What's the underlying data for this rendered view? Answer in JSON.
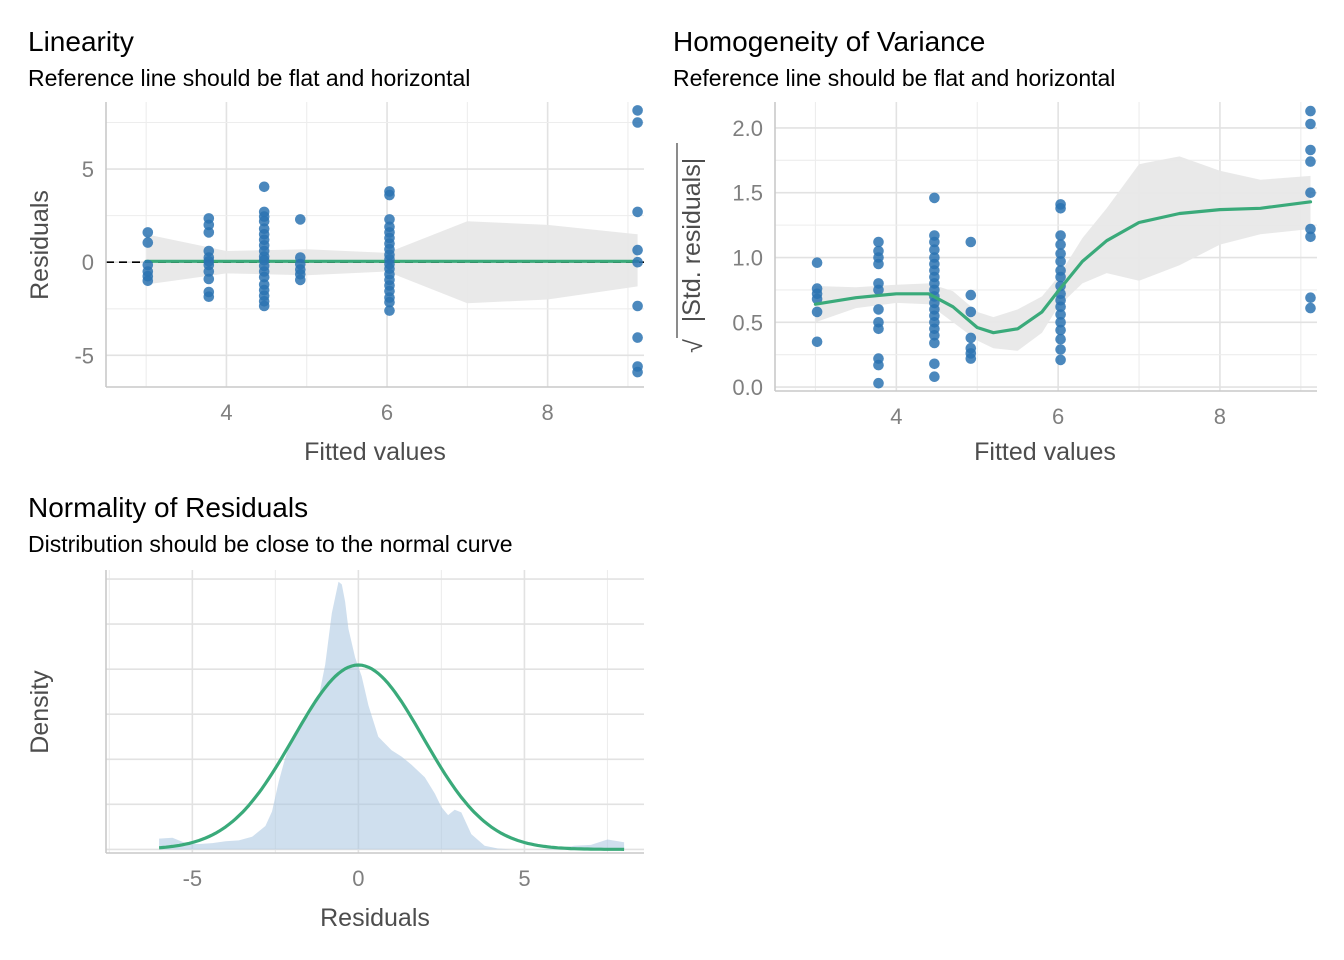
{
  "chart_data": [
    {
      "id": "linearity",
      "type": "scatter",
      "title": "Linearity",
      "subtitle": "Reference line should be flat and horizontal",
      "xlabel": "Fitted values",
      "ylabel": "Residuals",
      "xlim": [
        2.5,
        9.2
      ],
      "ylim": [
        -6.7,
        8.6
      ],
      "x_ticks": [
        4,
        6,
        8
      ],
      "x_tick_labels": [
        "4",
        "6",
        "8"
      ],
      "y_ticks": [
        -5,
        0,
        5
      ],
      "y_tick_labels": [
        "-5",
        "0",
        "5"
      ],
      "grid": true,
      "reference_line": {
        "y": 0,
        "style": "dashed",
        "color": "#000000"
      },
      "point_color": "#2b73b2",
      "points": [
        {
          "x": 3.02,
          "y": 1.6
        },
        {
          "x": 3.02,
          "y": 1.05
        },
        {
          "x": 3.02,
          "y": -0.15
        },
        {
          "x": 3.02,
          "y": -0.5
        },
        {
          "x": 3.02,
          "y": -0.75
        },
        {
          "x": 3.02,
          "y": -1.0
        },
        {
          "x": 3.78,
          "y": 2.35
        },
        {
          "x": 3.78,
          "y": 2.0
        },
        {
          "x": 3.78,
          "y": 1.6
        },
        {
          "x": 3.78,
          "y": 0.6
        },
        {
          "x": 3.78,
          "y": 0.25
        },
        {
          "x": 3.78,
          "y": 0.05
        },
        {
          "x": 3.78,
          "y": -0.15
        },
        {
          "x": 3.78,
          "y": -0.5
        },
        {
          "x": 3.78,
          "y": -0.9
        },
        {
          "x": 3.78,
          "y": -1.6
        },
        {
          "x": 3.78,
          "y": -1.85
        },
        {
          "x": 4.47,
          "y": 4.05
        },
        {
          "x": 4.47,
          "y": 2.7
        },
        {
          "x": 4.47,
          "y": 2.45
        },
        {
          "x": 4.47,
          "y": 2.2
        },
        {
          "x": 4.47,
          "y": 1.8
        },
        {
          "x": 4.47,
          "y": 1.5
        },
        {
          "x": 4.47,
          "y": 1.2
        },
        {
          "x": 4.47,
          "y": 0.9
        },
        {
          "x": 4.47,
          "y": 0.6
        },
        {
          "x": 4.47,
          "y": 0.3
        },
        {
          "x": 4.47,
          "y": 0.1
        },
        {
          "x": 4.47,
          "y": -0.2
        },
        {
          "x": 4.47,
          "y": -0.5
        },
        {
          "x": 4.47,
          "y": -0.8
        },
        {
          "x": 4.47,
          "y": -1.2
        },
        {
          "x": 4.47,
          "y": -1.5
        },
        {
          "x": 4.47,
          "y": -1.8
        },
        {
          "x": 4.47,
          "y": -2.1
        },
        {
          "x": 4.47,
          "y": -2.35
        },
        {
          "x": 4.92,
          "y": 2.3
        },
        {
          "x": 4.92,
          "y": 0.25
        },
        {
          "x": 4.92,
          "y": -0.1
        },
        {
          "x": 4.92,
          "y": -0.4
        },
        {
          "x": 4.92,
          "y": -0.65
        },
        {
          "x": 4.92,
          "y": -0.95
        },
        {
          "x": 6.03,
          "y": 3.8
        },
        {
          "x": 6.03,
          "y": 3.6
        },
        {
          "x": 6.03,
          "y": 2.3
        },
        {
          "x": 6.03,
          "y": 1.9
        },
        {
          "x": 6.03,
          "y": 1.6
        },
        {
          "x": 6.03,
          "y": 1.3
        },
        {
          "x": 6.03,
          "y": 1.0
        },
        {
          "x": 6.03,
          "y": 0.7
        },
        {
          "x": 6.03,
          "y": 0.4
        },
        {
          "x": 6.03,
          "y": 0.15
        },
        {
          "x": 6.03,
          "y": -0.1
        },
        {
          "x": 6.03,
          "y": -0.35
        },
        {
          "x": 6.03,
          "y": -0.65
        },
        {
          "x": 6.03,
          "y": -0.95
        },
        {
          "x": 6.03,
          "y": -1.25
        },
        {
          "x": 6.03,
          "y": -1.55
        },
        {
          "x": 6.03,
          "y": -1.9
        },
        {
          "x": 6.03,
          "y": -2.15
        },
        {
          "x": 6.03,
          "y": -2.6
        },
        {
          "x": 9.12,
          "y": 8.15
        },
        {
          "x": 9.12,
          "y": 7.5
        },
        {
          "x": 9.12,
          "y": 2.7
        },
        {
          "x": 9.12,
          "y": 0.65
        },
        {
          "x": 9.12,
          "y": 0.0
        },
        {
          "x": 9.12,
          "y": -2.35
        },
        {
          "x": 9.12,
          "y": -4.05
        },
        {
          "x": 9.12,
          "y": -5.6
        },
        {
          "x": 9.12,
          "y": -5.9
        }
      ],
      "smooth": {
        "color": "#3aaa7a",
        "x": [
          3.0,
          4.0,
          5.0,
          6.0,
          7.0,
          8.0,
          9.12
        ],
        "y": [
          0.05,
          0.05,
          0.05,
          0.05,
          0.05,
          0.05,
          0.05
        ],
        "ci_upper": [
          1.5,
          0.6,
          0.7,
          0.5,
          2.2,
          2.0,
          1.5
        ],
        "ci_lower": [
          -1.2,
          -0.6,
          -0.7,
          -0.5,
          -2.2,
          -2.0,
          -1.3
        ]
      }
    },
    {
      "id": "homogeneity",
      "type": "scatter",
      "title": "Homogeneity of Variance",
      "subtitle": "Reference line should be flat and horizontal",
      "xlabel": "Fitted values",
      "ylabel": "|Std. residuals|",
      "ylabel_root": "√",
      "xlim": [
        2.5,
        9.2
      ],
      "ylim": [
        -0.03,
        2.2
      ],
      "x_ticks": [
        4,
        6,
        8
      ],
      "x_tick_labels": [
        "4",
        "6",
        "8"
      ],
      "y_ticks": [
        0,
        0.5,
        1,
        1.5,
        2
      ],
      "y_tick_labels": [
        "0.0",
        "0.5",
        "1.0",
        "1.5",
        "2.0"
      ],
      "grid": true,
      "point_color": "#2b73b2",
      "points": [
        {
          "x": 3.02,
          "y": 0.96
        },
        {
          "x": 3.02,
          "y": 0.76
        },
        {
          "x": 3.02,
          "y": 0.72
        },
        {
          "x": 3.02,
          "y": 0.68
        },
        {
          "x": 3.02,
          "y": 0.58
        },
        {
          "x": 3.02,
          "y": 0.35
        },
        {
          "x": 3.78,
          "y": 1.12
        },
        {
          "x": 3.78,
          "y": 1.05
        },
        {
          "x": 3.78,
          "y": 1.0
        },
        {
          "x": 3.78,
          "y": 0.95
        },
        {
          "x": 3.78,
          "y": 0.8
        },
        {
          "x": 3.78,
          "y": 0.75
        },
        {
          "x": 3.78,
          "y": 0.6
        },
        {
          "x": 3.78,
          "y": 0.5
        },
        {
          "x": 3.78,
          "y": 0.45
        },
        {
          "x": 3.78,
          "y": 0.22
        },
        {
          "x": 3.78,
          "y": 0.17
        },
        {
          "x": 3.78,
          "y": 0.03
        },
        {
          "x": 4.47,
          "y": 1.46
        },
        {
          "x": 4.47,
          "y": 1.17
        },
        {
          "x": 4.47,
          "y": 1.12
        },
        {
          "x": 4.47,
          "y": 1.06
        },
        {
          "x": 4.47,
          "y": 1.0
        },
        {
          "x": 4.47,
          "y": 0.95
        },
        {
          "x": 4.47,
          "y": 0.9
        },
        {
          "x": 4.47,
          "y": 0.85
        },
        {
          "x": 4.47,
          "y": 0.8
        },
        {
          "x": 4.47,
          "y": 0.75
        },
        {
          "x": 4.47,
          "y": 0.7
        },
        {
          "x": 4.47,
          "y": 0.65
        },
        {
          "x": 4.47,
          "y": 0.6
        },
        {
          "x": 4.47,
          "y": 0.55
        },
        {
          "x": 4.47,
          "y": 0.5
        },
        {
          "x": 4.47,
          "y": 0.45
        },
        {
          "x": 4.47,
          "y": 0.4
        },
        {
          "x": 4.47,
          "y": 0.34
        },
        {
          "x": 4.47,
          "y": 0.18
        },
        {
          "x": 4.47,
          "y": 0.08
        },
        {
          "x": 4.92,
          "y": 1.12
        },
        {
          "x": 4.92,
          "y": 0.71
        },
        {
          "x": 4.92,
          "y": 0.58
        },
        {
          "x": 4.92,
          "y": 0.38
        },
        {
          "x": 4.92,
          "y": 0.3
        },
        {
          "x": 4.92,
          "y": 0.26
        },
        {
          "x": 4.92,
          "y": 0.22
        },
        {
          "x": 6.03,
          "y": 1.41
        },
        {
          "x": 6.03,
          "y": 1.38
        },
        {
          "x": 6.03,
          "y": 1.17
        },
        {
          "x": 6.03,
          "y": 1.1
        },
        {
          "x": 6.03,
          "y": 1.03
        },
        {
          "x": 6.03,
          "y": 0.97
        },
        {
          "x": 6.03,
          "y": 0.9
        },
        {
          "x": 6.03,
          "y": 0.85
        },
        {
          "x": 6.03,
          "y": 0.78
        },
        {
          "x": 6.03,
          "y": 0.72
        },
        {
          "x": 6.03,
          "y": 0.67
        },
        {
          "x": 6.03,
          "y": 0.62
        },
        {
          "x": 6.03,
          "y": 0.56
        },
        {
          "x": 6.03,
          "y": 0.5
        },
        {
          "x": 6.03,
          "y": 0.44
        },
        {
          "x": 6.03,
          "y": 0.37
        },
        {
          "x": 6.03,
          "y": 0.29
        },
        {
          "x": 6.03,
          "y": 0.21
        },
        {
          "x": 9.12,
          "y": 2.13
        },
        {
          "x": 9.12,
          "y": 2.03
        },
        {
          "x": 9.12,
          "y": 1.83
        },
        {
          "x": 9.12,
          "y": 1.74
        },
        {
          "x": 9.12,
          "y": 1.5
        },
        {
          "x": 9.12,
          "y": 1.22
        },
        {
          "x": 9.12,
          "y": 1.16
        },
        {
          "x": 9.12,
          "y": 0.69
        },
        {
          "x": 9.12,
          "y": 0.61
        }
      ],
      "smooth": {
        "color": "#3aaa7a",
        "x": [
          3.0,
          3.5,
          4.0,
          4.4,
          4.7,
          5.0,
          5.2,
          5.5,
          5.8,
          6.0,
          6.3,
          6.6,
          7.0,
          7.5,
          8.0,
          8.5,
          9.12
        ],
        "y": [
          0.64,
          0.69,
          0.72,
          0.72,
          0.62,
          0.46,
          0.42,
          0.45,
          0.58,
          0.74,
          0.97,
          1.13,
          1.27,
          1.34,
          1.37,
          1.38,
          1.43
        ],
        "ci_upper": [
          0.78,
          0.77,
          0.79,
          0.8,
          0.74,
          0.58,
          0.54,
          0.6,
          0.7,
          0.85,
          1.15,
          1.38,
          1.72,
          1.78,
          1.67,
          1.6,
          1.63
        ],
        "ci_lower": [
          0.5,
          0.61,
          0.65,
          0.64,
          0.5,
          0.36,
          0.3,
          0.28,
          0.42,
          0.62,
          0.8,
          0.88,
          0.82,
          0.94,
          1.1,
          1.18,
          1.22
        ]
      }
    },
    {
      "id": "normality",
      "type": "area",
      "title": "Normality of Residuals",
      "subtitle": "Distribution should be close to the normal curve",
      "xlabel": "Residuals",
      "ylabel": "Density",
      "xlim": [
        -7.6,
        8.6
      ],
      "ylim": [
        -0.004,
        0.31
      ],
      "x_ticks": [
        -5,
        0,
        5
      ],
      "x_tick_labels": [
        "-5",
        "0",
        "5"
      ],
      "y_gridlines": [
        0,
        0.05,
        0.1,
        0.15,
        0.2,
        0.25,
        0.3
      ],
      "grid": true,
      "density_fill_color": "#a8c5e0",
      "density": {
        "x": [
          -6.0,
          -5.6,
          -5.2,
          -4.8,
          -4.4,
          -4.0,
          -3.6,
          -3.2,
          -2.8,
          -2.6,
          -2.4,
          -2.2,
          -2.0,
          -1.8,
          -1.5,
          -1.2,
          -1.0,
          -0.8,
          -0.6,
          -0.5,
          -0.4,
          -0.3,
          -0.1,
          0.1,
          0.3,
          0.6,
          1.0,
          1.3,
          1.6,
          2.0,
          2.3,
          2.5,
          2.7,
          2.9,
          3.1,
          3.4,
          3.8,
          4.2,
          4.6,
          5.0,
          5.5,
          6.0,
          6.5,
          7.0,
          7.5,
          8.0
        ],
        "y": [
          0.012,
          0.013,
          0.007,
          0.006,
          0.007,
          0.009,
          0.01,
          0.014,
          0.026,
          0.042,
          0.075,
          0.102,
          0.123,
          0.137,
          0.148,
          0.168,
          0.205,
          0.262,
          0.297,
          0.294,
          0.275,
          0.245,
          0.213,
          0.192,
          0.16,
          0.125,
          0.11,
          0.103,
          0.094,
          0.08,
          0.062,
          0.047,
          0.038,
          0.044,
          0.041,
          0.017,
          0.004,
          0.001,
          0.0,
          0.0,
          0.0,
          0.001,
          0.004,
          0.005,
          0.011,
          0.008
        ]
      },
      "normal_curve": {
        "color": "#3aaa7a",
        "mean": 0,
        "sd": 1.95,
        "x_range": [
          -6.0,
          8.0
        ]
      }
    }
  ]
}
